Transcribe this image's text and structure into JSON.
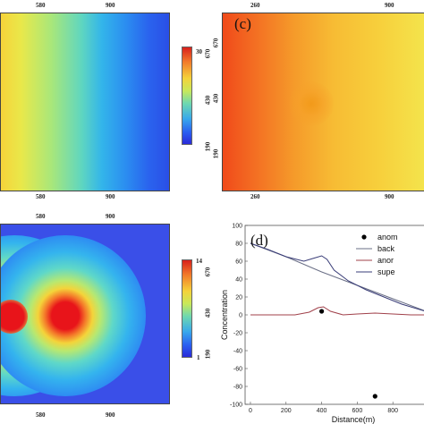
{
  "panel_a": {
    "top_ticks": [
      "580",
      "900"
    ],
    "bottom_ticks": [
      "580",
      "900"
    ],
    "colorbar_ticks": [
      "670",
      "430",
      "190"
    ],
    "colorbar_max": "30"
  },
  "panel_c": {
    "label": "(c)",
    "top_ticks": [
      "260",
      "900"
    ],
    "bottom_ticks": [
      "260",
      "900"
    ],
    "left_ticks": [
      "670",
      "430",
      "190"
    ]
  },
  "panel_e": {
    "top_ticks": [
      "580",
      "900"
    ],
    "bottom_ticks": [
      "580",
      "900"
    ],
    "colorbar_ticks": [
      "670",
      "430",
      "190"
    ],
    "colorbar_max": "14",
    "colorbar_min": "1"
  },
  "chart_data": {
    "type": "line",
    "panel_label": "(d)",
    "xlabel": "Distance(m)",
    "ylabel": "Concentration",
    "xlim": [
      -30,
      1000
    ],
    "ylim": [
      -100,
      100
    ],
    "x_ticks": [
      "0",
      "200",
      "400",
      "600",
      "800"
    ],
    "y_ticks": [
      "100",
      "80",
      "60",
      "40",
      "20",
      "0",
      "-20",
      "-40",
      "-60",
      "-80",
      "-100"
    ],
    "legend": [
      "anom",
      "back",
      "anor",
      "supe"
    ],
    "series": [
      {
        "name": "back",
        "color": "#6a6f86",
        "x": [
          0,
          200,
          400,
          600,
          800,
          1000
        ],
        "y": [
          80,
          65,
          48,
          33,
          18,
          3
        ]
      },
      {
        "name": "supe",
        "color": "#3a3d78",
        "x": [
          0,
          100,
          200,
          300,
          350,
          400,
          430,
          470,
          550,
          650,
          750,
          850,
          1000
        ],
        "y": [
          80,
          73,
          65,
          60,
          63,
          66,
          62,
          50,
          38,
          28,
          20,
          12,
          3
        ]
      },
      {
        "name": "anor",
        "color": "#a0404a",
        "x": [
          0,
          250,
          330,
          380,
          410,
          450,
          520,
          600,
          700,
          800,
          900,
          1000
        ],
        "y": [
          0,
          0,
          3,
          8,
          9,
          4,
          0,
          1,
          2,
          1,
          0,
          0
        ]
      },
      {
        "name": "anom",
        "color": "#000000",
        "marker": "dot",
        "x": [
          400,
          700
        ],
        "y": [
          4,
          -91
        ]
      }
    ]
  }
}
